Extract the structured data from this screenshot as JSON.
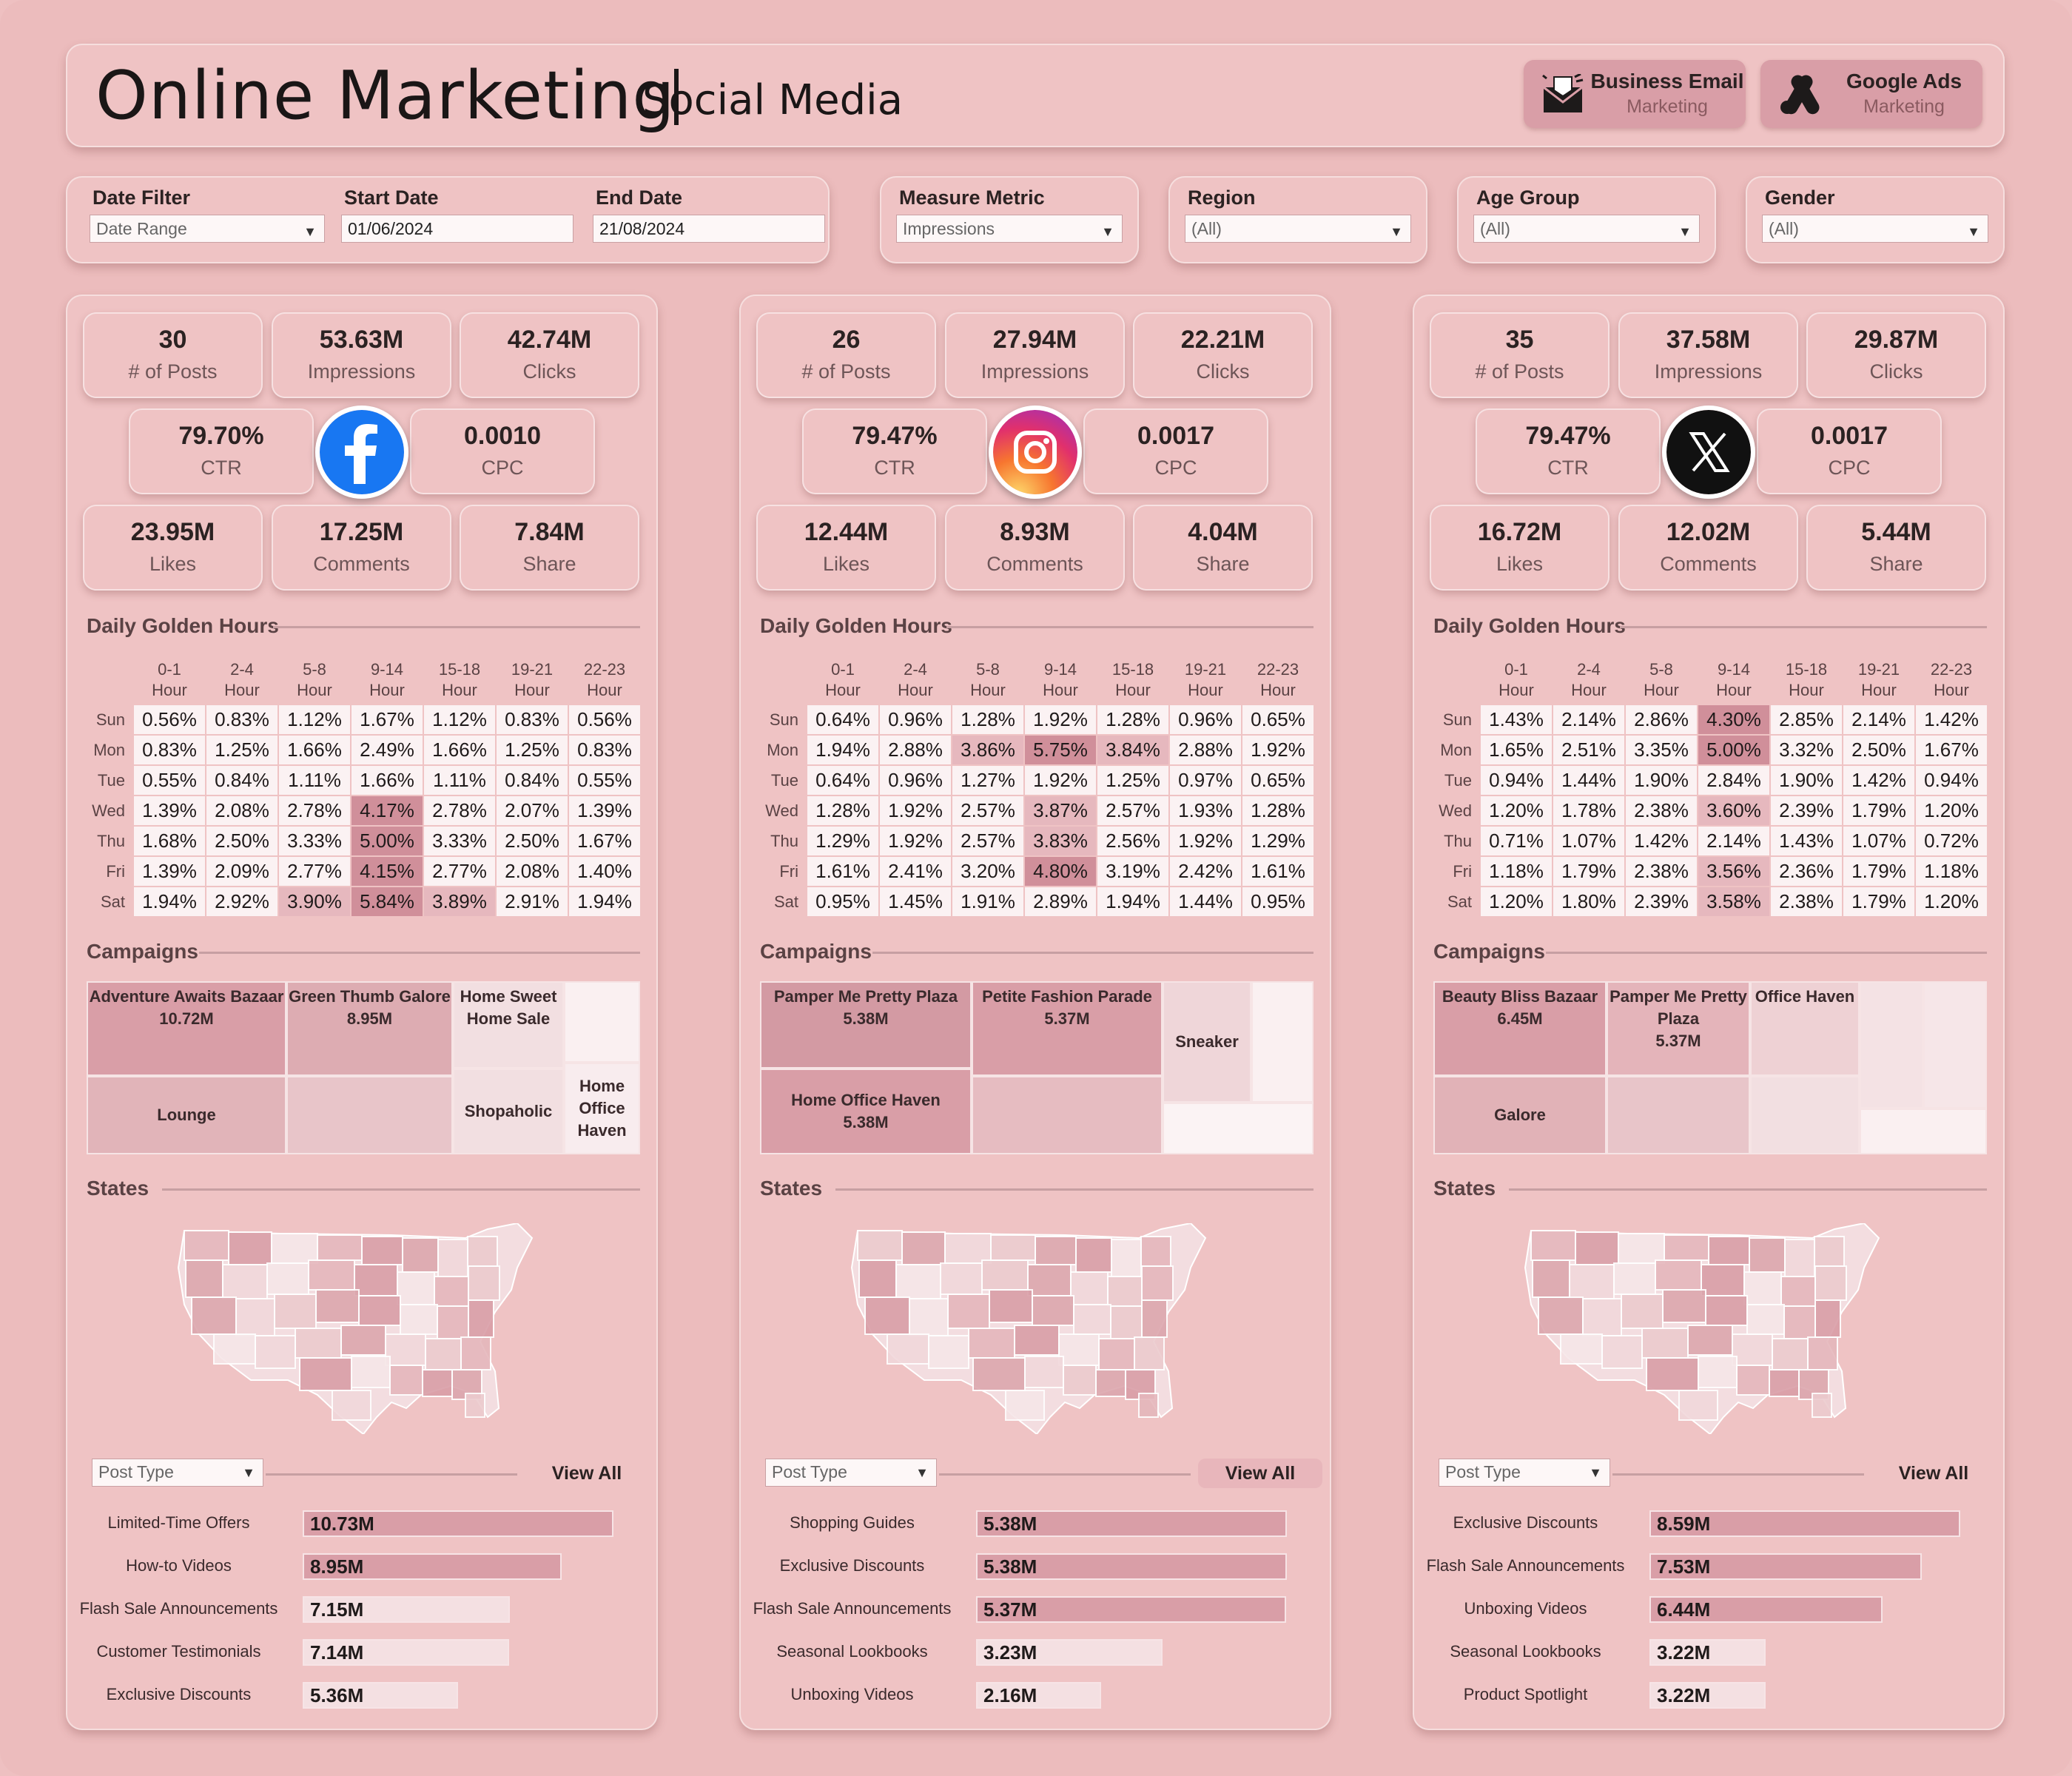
{
  "header": {
    "title": "Online Marketing",
    "subtitle": "Social Media",
    "buttons": [
      {
        "line1": "Business Email",
        "line2": "Marketing",
        "icon": "email-icon"
      },
      {
        "line1": "Google Ads",
        "line2": "Marketing",
        "icon": "google-ads-icon"
      }
    ]
  },
  "filters": {
    "date_filter": {
      "label": "Date Filter",
      "value": "Date Range"
    },
    "start_date": {
      "label": "Start Date",
      "value": "01/06/2024"
    },
    "end_date": {
      "label": "End Date",
      "value": "21/08/2024"
    },
    "measure_metric": {
      "label": "Measure Metric",
      "value": "Impressions"
    },
    "region": {
      "label": "Region",
      "value": "(All)"
    },
    "age_group": {
      "label": "Age Group",
      "value": "(All)"
    },
    "gender": {
      "label": "Gender",
      "value": "(All)"
    }
  },
  "labels": {
    "posts": "# of Posts",
    "impressions": "Impressions",
    "clicks": "Clicks",
    "ctr": "CTR",
    "cpc": "CPC",
    "likes": "Likes",
    "comments": "Comments",
    "share": "Share",
    "golden": "Daily Golden Hours",
    "campaigns": "Campaigns",
    "states": "States",
    "post_type": "Post Type",
    "view_all": "View All",
    "hour_cols": [
      [
        "0-1",
        "Hour"
      ],
      [
        "2-4",
        "Hour"
      ],
      [
        "5-8",
        "Hour"
      ],
      [
        "9-14",
        "Hour"
      ],
      [
        "15-18",
        "Hour"
      ],
      [
        "19-21",
        "Hour"
      ],
      [
        "22-23",
        "Hour"
      ]
    ],
    "days": [
      "Sun",
      "Mon",
      "Tue",
      "Wed",
      "Thu",
      "Fri",
      "Sat"
    ]
  },
  "colors": {
    "background": "#eec0c1",
    "accent": "#d99ea7",
    "strong": "#c98893",
    "light": "#f6e4e5"
  },
  "panels": [
    {
      "platform": "Facebook",
      "icon": "facebook-icon",
      "kpis": {
        "posts": "30",
        "impressions": "53.63M",
        "clicks": "42.74M",
        "ctr": "79.70%",
        "cpc": "0.0010",
        "likes": "23.95M",
        "comments": "17.25M",
        "share": "7.84M"
      },
      "hours": [
        [
          "0.56%",
          "0.83%",
          "1.12%",
          "1.67%",
          "1.12%",
          "0.83%",
          "0.56%"
        ],
        [
          "0.83%",
          "1.25%",
          "1.66%",
          "2.49%",
          "1.66%",
          "1.25%",
          "0.83%"
        ],
        [
          "0.55%",
          "0.84%",
          "1.11%",
          "1.66%",
          "1.11%",
          "0.84%",
          "0.55%"
        ],
        [
          "1.39%",
          "2.08%",
          "2.78%",
          "4.17%",
          "2.78%",
          "2.07%",
          "1.39%"
        ],
        [
          "1.68%",
          "2.50%",
          "3.33%",
          "5.00%",
          "3.33%",
          "2.50%",
          "1.67%"
        ],
        [
          "1.39%",
          "2.09%",
          "2.77%",
          "4.15%",
          "2.77%",
          "2.08%",
          "1.40%"
        ],
        [
          "1.94%",
          "2.92%",
          "3.90%",
          "5.84%",
          "3.89%",
          "2.91%",
          "1.94%"
        ]
      ],
      "campaigns": [
        {
          "name": "Adventure Awaits Bazaar",
          "value": "10.72M"
        },
        {
          "name": "Green Thumb Galore",
          "value": "8.95M"
        },
        {
          "name": "Home Sweet Home Sale",
          "value": ""
        },
        {
          "name": "Lounge",
          "value": ""
        },
        {
          "name": "Shopaholic",
          "value": ""
        },
        {
          "name": "Home Office Haven",
          "value": ""
        }
      ],
      "post_types": [
        {
          "label": "Limited-Time Offers",
          "value": "10.73M",
          "v": 10.73
        },
        {
          "label": "How-to Videos",
          "value": "8.95M",
          "v": 8.95
        },
        {
          "label": "Flash Sale Announcements",
          "value": "7.15M",
          "v": 7.15
        },
        {
          "label": "Customer Testimonials",
          "value": "7.14M",
          "v": 7.14
        },
        {
          "label": "Exclusive Discounts",
          "value": "5.36M",
          "v": 5.36
        }
      ]
    },
    {
      "platform": "Instagram",
      "icon": "instagram-icon",
      "kpis": {
        "posts": "26",
        "impressions": "27.94M",
        "clicks": "22.21M",
        "ctr": "79.47%",
        "cpc": "0.0017",
        "likes": "12.44M",
        "comments": "8.93M",
        "share": "4.04M"
      },
      "hours": [
        [
          "0.64%",
          "0.96%",
          "1.28%",
          "1.92%",
          "1.28%",
          "0.96%",
          "0.65%"
        ],
        [
          "1.94%",
          "2.88%",
          "3.86%",
          "5.75%",
          "3.84%",
          "2.88%",
          "1.92%"
        ],
        [
          "0.64%",
          "0.96%",
          "1.27%",
          "1.92%",
          "1.25%",
          "0.97%",
          "0.65%"
        ],
        [
          "1.28%",
          "1.92%",
          "2.57%",
          "3.87%",
          "2.57%",
          "1.93%",
          "1.28%"
        ],
        [
          "1.29%",
          "1.92%",
          "2.57%",
          "3.83%",
          "2.56%",
          "1.92%",
          "1.29%"
        ],
        [
          "1.61%",
          "2.41%",
          "3.20%",
          "4.80%",
          "3.19%",
          "2.42%",
          "1.61%"
        ],
        [
          "0.95%",
          "1.45%",
          "1.91%",
          "2.89%",
          "1.94%",
          "1.44%",
          "0.95%"
        ]
      ],
      "campaigns": [
        {
          "name": "Pamper Me Pretty Plaza",
          "value": "5.38M"
        },
        {
          "name": "Petite Fashion Parade",
          "value": "5.37M"
        },
        {
          "name": "Sneaker",
          "value": ""
        },
        {
          "name": "Home Office Haven",
          "value": "5.38M"
        }
      ],
      "post_types": [
        {
          "label": "Shopping Guides",
          "value": "5.38M",
          "v": 5.38
        },
        {
          "label": "Exclusive Discounts",
          "value": "5.38M",
          "v": 5.38
        },
        {
          "label": "Flash Sale Announcements",
          "value": "5.37M",
          "v": 5.37
        },
        {
          "label": "Seasonal Lookbooks",
          "value": "3.23M",
          "v": 3.23
        },
        {
          "label": "Unboxing Videos",
          "value": "2.16M",
          "v": 2.16
        }
      ]
    },
    {
      "platform": "X",
      "icon": "x-icon",
      "kpis": {
        "posts": "35",
        "impressions": "37.58M",
        "clicks": "29.87M",
        "ctr": "79.47%",
        "cpc": "0.0017",
        "likes": "16.72M",
        "comments": "12.02M",
        "share": "5.44M"
      },
      "hours": [
        [
          "1.43%",
          "2.14%",
          "2.86%",
          "4.30%",
          "2.85%",
          "2.14%",
          "1.42%"
        ],
        [
          "1.65%",
          "2.51%",
          "3.35%",
          "5.00%",
          "3.32%",
          "2.50%",
          "1.67%"
        ],
        [
          "0.94%",
          "1.44%",
          "1.90%",
          "2.84%",
          "1.90%",
          "1.42%",
          "0.94%"
        ],
        [
          "1.20%",
          "1.78%",
          "2.38%",
          "3.60%",
          "2.39%",
          "1.79%",
          "1.20%"
        ],
        [
          "0.71%",
          "1.07%",
          "1.42%",
          "2.14%",
          "1.43%",
          "1.07%",
          "0.72%"
        ],
        [
          "1.18%",
          "1.79%",
          "2.38%",
          "3.56%",
          "2.36%",
          "1.79%",
          "1.18%"
        ],
        [
          "1.20%",
          "1.80%",
          "2.39%",
          "3.58%",
          "2.38%",
          "1.79%",
          "1.20%"
        ]
      ],
      "campaigns": [
        {
          "name": "Beauty Bliss Bazaar",
          "value": "6.45M"
        },
        {
          "name": "Pamper Me Pretty Plaza",
          "value": "5.37M"
        },
        {
          "name": "Office Haven",
          "value": ""
        },
        {
          "name": "Galore",
          "value": ""
        }
      ],
      "post_types": [
        {
          "label": "Exclusive Discounts",
          "value": "8.59M",
          "v": 8.59
        },
        {
          "label": "Flash Sale Announcements",
          "value": "7.53M",
          "v": 7.53
        },
        {
          "label": "Unboxing Videos",
          "value": "6.44M",
          "v": 6.44
        },
        {
          "label": "Seasonal Lookbooks",
          "value": "3.22M",
          "v": 3.22
        },
        {
          "label": "Product Spotlight",
          "value": "3.22M",
          "v": 3.22
        }
      ]
    }
  ]
}
